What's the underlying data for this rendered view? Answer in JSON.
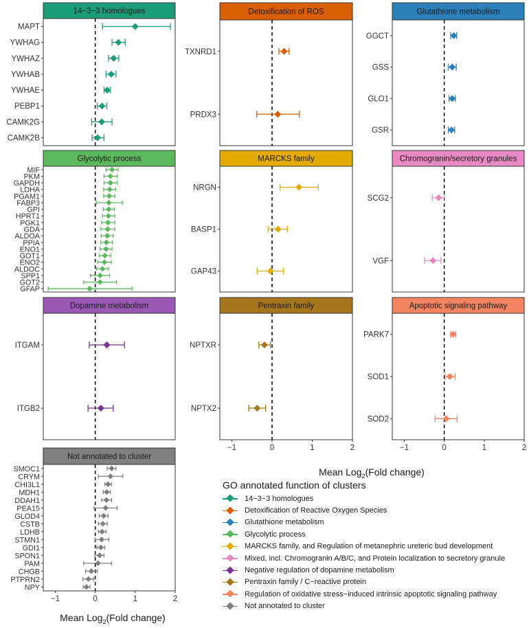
{
  "figure": {
    "axis_title_main": "Mean Log",
    "axis_title_sub": "2",
    "axis_title_rest": "(Fold change)",
    "xticks": [
      "−1",
      "0",
      "1",
      "2"
    ]
  },
  "legend": {
    "title": "GO annotated function of clusters",
    "items": [
      {
        "label": "14−3−3 homologues",
        "color": "#1b9e77"
      },
      {
        "label": "Detoxification of Reactive Oxygen Species",
        "color": "#d95f02"
      },
      {
        "label": "Glutathione metabolism",
        "color": "#2c7fb8"
      },
      {
        "label": "Glycolytic process",
        "color": "#5cb85c"
      },
      {
        "label": "MARCKS family, and Regulation of metanephric ureteric bud development",
        "color": "#e6ab02"
      },
      {
        "label": "Mixed, incl. Chromogranin A/B/C, and Protein localization to secretory granule",
        "color": "#e78ac3"
      },
      {
        "label": "Negative regulation of dopamine metabolism",
        "color": "#7b3294"
      },
      {
        "label": "Pentraxin family / C−reactive protein",
        "color": "#a6761d"
      },
      {
        "label": "Regulation of oxidative stress−induced intrinsic apoptotic signaling pathway",
        "color": "#f4845f"
      },
      {
        "label": "Not annotated to cluster",
        "color": "#808080"
      }
    ]
  },
  "chart_data": [
    {
      "type": "forest",
      "title": "14−3−3 homologues",
      "header_color": "#1b9e77",
      "point_color": "#1b9e77",
      "xlim": [
        -1.3,
        2.0
      ],
      "xlabel": "Mean Log2(Fold change)",
      "genes": [
        "MAPT",
        "YWHAG",
        "YWHAZ",
        "YWHAB",
        "YWHAE",
        "PEBP1",
        "CAMK2G",
        "CAMK2B"
      ],
      "mean": [
        1.0,
        0.58,
        0.46,
        0.4,
        0.3,
        0.17,
        0.16,
        0.06
      ],
      "lower": [
        0.18,
        0.42,
        0.33,
        0.27,
        0.22,
        0.05,
        -0.09,
        -0.08
      ],
      "upper": [
        1.88,
        0.75,
        0.59,
        0.52,
        0.38,
        0.29,
        0.42,
        0.22
      ]
    },
    {
      "type": "forest",
      "title": "Detoxification of ROS",
      "header_color": "#d95f02",
      "point_color": "#d95f02",
      "xlim": [
        -1.3,
        2.0
      ],
      "xlabel": "Mean Log2(Fold change)",
      "genes": [
        "TXNRD1",
        "PRDX3"
      ],
      "mean": [
        0.3,
        0.14
      ],
      "lower": [
        0.17,
        -0.38
      ],
      "upper": [
        0.42,
        0.68
      ]
    },
    {
      "type": "forest",
      "title": "Glutathione metabolism",
      "header_color": "#2c7fb8",
      "point_color": "#2c7fb8",
      "xlim": [
        -1.3,
        2.0
      ],
      "xlabel": "Mean Log2(Fold change)",
      "genes": [
        "GGCT",
        "GSS",
        "GLO1",
        "GSR"
      ],
      "mean": [
        0.24,
        0.2,
        0.2,
        0.18
      ],
      "lower": [
        0.16,
        0.1,
        0.12,
        0.1
      ],
      "upper": [
        0.31,
        0.3,
        0.28,
        0.26
      ]
    },
    {
      "type": "forest",
      "title": "Glycolytic process",
      "header_color": "#5cb85c",
      "point_color": "#5cb85c",
      "xlim": [
        -1.3,
        2.0
      ],
      "xlabel": "Mean Log2(Fold change)",
      "genes": [
        "MIF",
        "PKM",
        "GAPDH",
        "LDHA",
        "PGAM1",
        "FABP3",
        "GPI",
        "HPRT1",
        "PGK1",
        "GDA",
        "ALDOA",
        "PPIA",
        "ENO1",
        "GOT1",
        "ENO2",
        "ALDOC",
        "SPP1",
        "GOT2",
        "GFAP"
      ],
      "mean": [
        0.42,
        0.38,
        0.38,
        0.36,
        0.35,
        0.34,
        0.34,
        0.33,
        0.32,
        0.31,
        0.3,
        0.28,
        0.27,
        0.24,
        0.23,
        0.18,
        0.12,
        0.12,
        -0.14
      ],
      "lower": [
        0.27,
        0.22,
        0.22,
        0.21,
        0.21,
        0.03,
        0.2,
        0.18,
        0.16,
        0.14,
        0.15,
        0.14,
        0.12,
        0.1,
        0.06,
        0.03,
        -0.12,
        -0.29,
        -1.18
      ],
      "upper": [
        0.57,
        0.55,
        0.55,
        0.51,
        0.49,
        0.68,
        0.48,
        0.49,
        0.49,
        0.49,
        0.45,
        0.43,
        0.42,
        0.39,
        0.4,
        0.33,
        0.36,
        0.53,
        0.92
      ]
    },
    {
      "type": "forest",
      "title": "MARCKS family",
      "header_color": "#e6ab02",
      "point_color": "#e6ab02",
      "xlim": [
        -1.3,
        2.0
      ],
      "xlabel": "Mean Log2(Fold change)",
      "genes": [
        "NRGN",
        "BASP1",
        "GAP43"
      ],
      "mean": [
        0.67,
        0.15,
        -0.04
      ],
      "lower": [
        0.2,
        -0.1,
        -0.37
      ],
      "upper": [
        1.15,
        0.38,
        0.28
      ]
    },
    {
      "type": "forest",
      "title": "Chromogranin/secretory granules",
      "header_color": "#e78ac3",
      "point_color": "#e78ac3",
      "xlim": [
        -1.3,
        2.0
      ],
      "xlabel": "Mean Log2(Fold change)",
      "genes": [
        "SCG2",
        "VGF"
      ],
      "mean": [
        -0.14,
        -0.28
      ],
      "lower": [
        -0.3,
        -0.49
      ],
      "upper": [
        0.01,
        -0.08
      ]
    },
    {
      "type": "forest",
      "title": "Dopamine metabolism",
      "header_color": "#9b59b6",
      "point_color": "#7b3294",
      "xlim": [
        -1.3,
        2.0
      ],
      "xlabel": "Mean Log2(Fold change)",
      "genes": [
        "ITGAM",
        "ITGB2"
      ],
      "mean": [
        0.29,
        0.14
      ],
      "lower": [
        -0.15,
        -0.18
      ],
      "upper": [
        0.73,
        0.45
      ]
    },
    {
      "type": "forest",
      "title": "Pentraxin family",
      "header_color": "#a6761d",
      "point_color": "#a6761d",
      "xlim": [
        -1.3,
        2.0
      ],
      "xlabel": "Mean Log2(Fold change)",
      "genes": [
        "NPTXR",
        "NPTX2"
      ],
      "mean": [
        -0.19,
        -0.37
      ],
      "lower": [
        -0.33,
        -0.58
      ],
      "upper": [
        -0.04,
        -0.16
      ]
    },
    {
      "type": "forest",
      "title": "Apoptotic signaling pathway",
      "header_color": "#f4845f",
      "point_color": "#f4845f",
      "xlim": [
        -1.3,
        2.0
      ],
      "xlabel": "Mean Log2(Fold change)",
      "genes": [
        "PARK7",
        "SOD1",
        "SOD2"
      ],
      "mean": [
        0.22,
        0.14,
        0.05
      ],
      "lower": [
        0.16,
        0.02,
        -0.23
      ],
      "upper": [
        0.29,
        0.27,
        0.32
      ]
    },
    {
      "type": "forest",
      "title": "Not annotated to cluster",
      "header_color": "#808080",
      "point_color": "#808080",
      "xlim": [
        -1.3,
        2.0
      ],
      "xlabel": "Mean Log2(Fold change)",
      "genes": [
        "SMOC1",
        "CRYM",
        "CHI3L1",
        "MDH1",
        "DDAH1",
        "PEA15",
        "GLOD4",
        "CSTB",
        "LDHB",
        "STMN1",
        "GDI1",
        "SPON1",
        "PAM",
        "CHGB",
        "PTPRN2",
        "NPY"
      ],
      "mean": [
        0.41,
        0.38,
        0.32,
        0.29,
        0.28,
        0.26,
        0.21,
        0.19,
        0.17,
        0.16,
        0.14,
        0.11,
        0.07,
        -0.1,
        -0.17,
        -0.22
      ],
      "lower": [
        0.3,
        0.08,
        0.24,
        0.2,
        0.16,
        -0.03,
        0.1,
        0.08,
        0.08,
        -0.01,
        0.04,
        -0.01,
        -0.29,
        -0.24,
        -0.31,
        -0.3
      ],
      "upper": [
        0.52,
        0.69,
        0.41,
        0.38,
        0.41,
        0.55,
        0.32,
        0.3,
        0.27,
        0.34,
        0.24,
        0.22,
        0.41,
        0.05,
        -0.04,
        -0.13
      ]
    }
  ]
}
